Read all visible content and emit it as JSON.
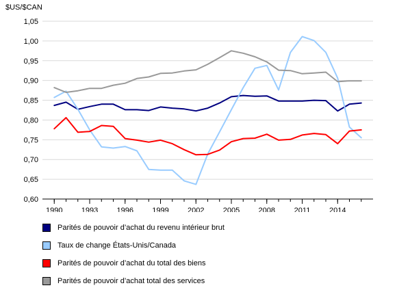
{
  "chart_data": {
    "type": "line",
    "ylabel": "$US/$CAN",
    "xlabel": "",
    "ylim": [
      0.6,
      1.05
    ],
    "y_ticks": [
      "0,60",
      "0,65",
      "0,70",
      "0,75",
      "0,80",
      "0,85",
      "0,90",
      "0,95",
      "1,00",
      "1,05"
    ],
    "x_tick_labels": [
      "1990",
      "1993",
      "1996",
      "1999",
      "2002",
      "2005",
      "2008",
      "2011",
      "2014"
    ],
    "x_tick_years": [
      1990,
      1993,
      1996,
      1999,
      2002,
      2005,
      2008,
      2011,
      2014
    ],
    "xlim": [
      1989,
      2017
    ],
    "grid": true,
    "legend_position": "bottom",
    "x": [
      1990,
      1991,
      1992,
      1993,
      1994,
      1995,
      1996,
      1997,
      1998,
      1999,
      2000,
      2001,
      2002,
      2003,
      2004,
      2005,
      2006,
      2007,
      2008,
      2009,
      2010,
      2011,
      2012,
      2013,
      2014,
      2015,
      2016
    ],
    "series": [
      {
        "name": "Parités de pouvoir d’achat du revenu intérieur brut",
        "color": "#000080",
        "values": [
          0.837,
          0.845,
          0.827,
          0.834,
          0.84,
          0.84,
          0.826,
          0.826,
          0.824,
          0.833,
          0.83,
          0.828,
          0.823,
          0.83,
          0.843,
          0.859,
          0.862,
          0.86,
          0.861,
          0.848,
          0.848,
          0.848,
          0.85,
          0.849,
          0.823,
          0.84,
          0.843
        ]
      },
      {
        "name": "Taux de change États-Unis/Canada",
        "color": "#99ccff",
        "values": [
          0.857,
          0.873,
          0.827,
          0.775,
          0.732,
          0.729,
          0.733,
          0.722,
          0.675,
          0.673,
          0.673,
          0.646,
          0.637,
          0.714,
          0.77,
          0.826,
          0.882,
          0.931,
          0.938,
          0.876,
          0.971,
          1.011,
          1.001,
          0.971,
          0.906,
          0.782,
          0.755
        ]
      },
      {
        "name": "Parités de pouvoir d’achat du total des biens",
        "color": "#ff0000",
        "values": [
          0.778,
          0.806,
          0.769,
          0.771,
          0.786,
          0.784,
          0.753,
          0.749,
          0.744,
          0.749,
          0.74,
          0.725,
          0.712,
          0.713,
          0.724,
          0.745,
          0.753,
          0.754,
          0.764,
          0.749,
          0.751,
          0.762,
          0.766,
          0.763,
          0.74,
          0.772,
          0.775
        ]
      },
      {
        "name": "Parités de pouvoir d’achat total des services",
        "color": "#999999",
        "values": [
          0.882,
          0.87,
          0.874,
          0.88,
          0.88,
          0.888,
          0.893,
          0.905,
          0.909,
          0.918,
          0.919,
          0.924,
          0.927,
          0.941,
          0.958,
          0.975,
          0.969,
          0.96,
          0.947,
          0.926,
          0.925,
          0.917,
          0.919,
          0.921,
          0.897,
          0.899,
          0.899
        ]
      }
    ]
  }
}
